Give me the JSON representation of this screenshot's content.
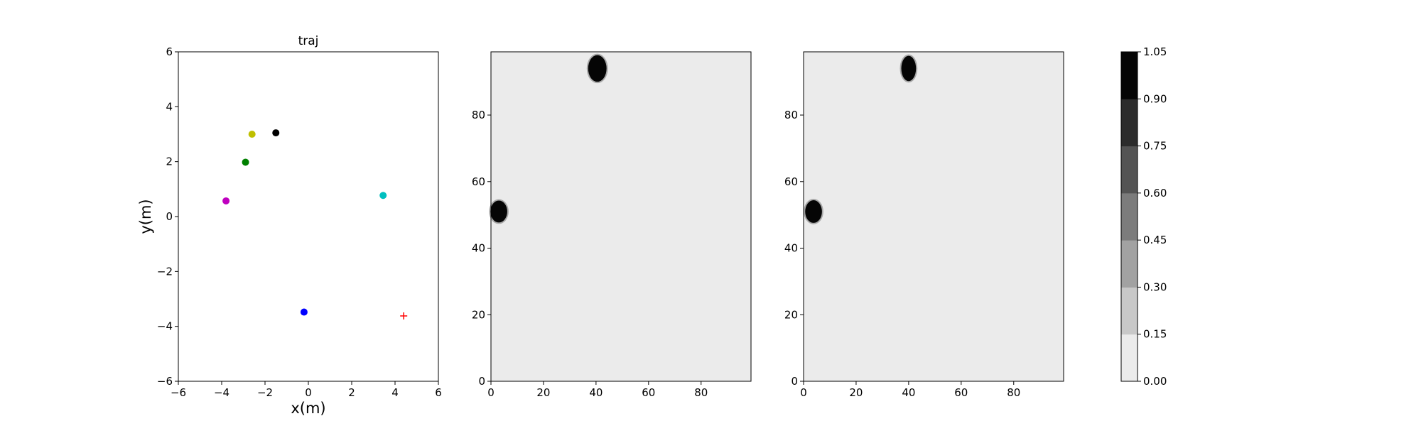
{
  "chart_data": [
    {
      "type": "scatter",
      "title": "traj",
      "xlabel": "x(m)",
      "ylabel": "y(m)",
      "xlim": [
        -6,
        6
      ],
      "ylim": [
        -6,
        6
      ],
      "xticks": [
        "−6",
        "−4",
        "−2",
        "0",
        "2",
        "4",
        "6"
      ],
      "yticks": [
        "−6",
        "−4",
        "−2",
        "0",
        "2",
        "4",
        "6"
      ],
      "grid": false,
      "points": [
        {
          "x": -2.6,
          "y": 3.0,
          "color": "#bfbf00",
          "marker": "circle"
        },
        {
          "x": -1.5,
          "y": 3.05,
          "color": "#000000",
          "marker": "circle"
        },
        {
          "x": -2.9,
          "y": 1.98,
          "color": "#008000",
          "marker": "circle"
        },
        {
          "x": -3.8,
          "y": 0.57,
          "color": "#bf00bf",
          "marker": "circle"
        },
        {
          "x": 3.45,
          "y": 0.77,
          "color": "#00bfbf",
          "marker": "circle"
        },
        {
          "x": -0.2,
          "y": -3.48,
          "color": "#0000ff",
          "marker": "circle"
        },
        {
          "x": 4.4,
          "y": -3.62,
          "color": "#ff0000",
          "marker": "plus"
        }
      ]
    },
    {
      "type": "heatmap",
      "title": "",
      "xlabel": "",
      "ylabel": "",
      "xlim": [
        0,
        99
      ],
      "ylim": [
        0,
        99
      ],
      "xticks": [
        "0",
        "20",
        "40",
        "60",
        "80"
      ],
      "yticks": [
        "0",
        "20",
        "40",
        "60",
        "80"
      ],
      "background_value": 0.05,
      "blobs": [
        {
          "cx": 40.5,
          "cy": 94,
          "rx": 3.5,
          "ry": 4,
          "value": 1.0
        },
        {
          "cx": 3,
          "cy": 51,
          "rx": 3.2,
          "ry": 3.3,
          "value": 1.0
        }
      ]
    },
    {
      "type": "heatmap",
      "title": "",
      "xlabel": "",
      "ylabel": "",
      "xlim": [
        0,
        99
      ],
      "ylim": [
        0,
        99
      ],
      "xticks": [
        "0",
        "20",
        "40",
        "60",
        "80"
      ],
      "yticks": [
        "0",
        "20",
        "40",
        "60",
        "80"
      ],
      "background_value": 0.05,
      "blobs": [
        {
          "cx": 40,
          "cy": 94,
          "rx": 2.8,
          "ry": 3.8,
          "value": 1.0
        },
        {
          "cx": 3.8,
          "cy": 51,
          "rx": 3.2,
          "ry": 3.4,
          "value": 1.0
        }
      ]
    }
  ],
  "colorbar": {
    "levels": [
      "0.00",
      "0.15",
      "0.30",
      "0.45",
      "0.60",
      "0.75",
      "0.90",
      "1.05"
    ],
    "colors": [
      "#ebebeb",
      "#c8c8c8",
      "#a2a2a2",
      "#7c7c7c",
      "#545454",
      "#2c2c2c",
      "#050505"
    ]
  }
}
